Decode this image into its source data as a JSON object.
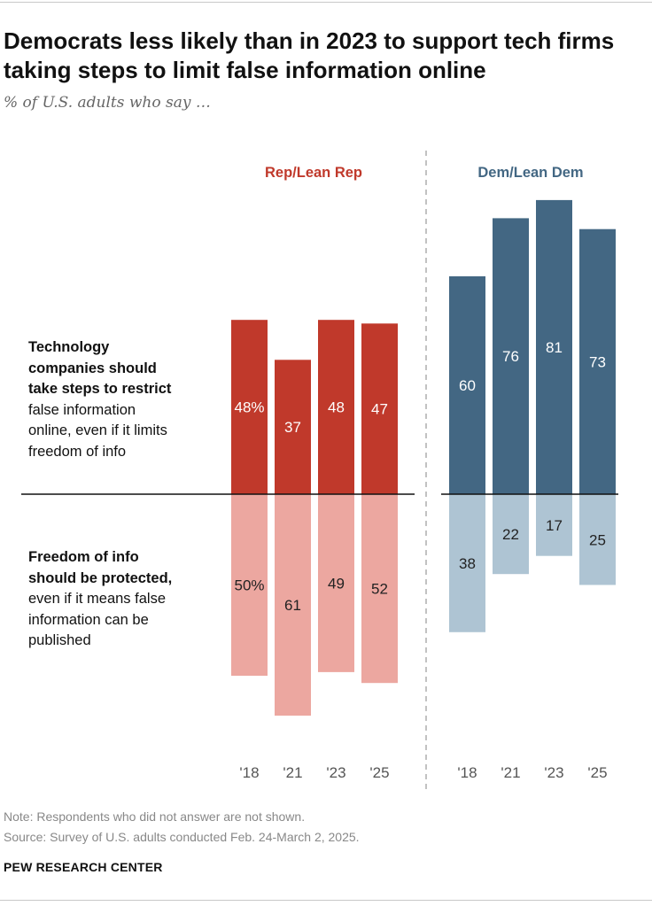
{
  "title": "Democrats less likely than in 2023 to support tech firms taking steps to limit false information online",
  "subtitle": "% of U.S. adults who say …",
  "row_labels": {
    "top_bold_1": "Technology",
    "top_bold_2": "companies should",
    "top_bold_3": "take steps to restrict",
    "top_1": "false information",
    "top_2": "online, even if it limits",
    "top_3": "freedom of info",
    "bottom_bold_1": "Freedom of info",
    "bottom_bold_2": "should be protected,",
    "bottom_1": "even if it means false",
    "bottom_2": "information can be",
    "bottom_3": "published"
  },
  "footer": {
    "note": "Note: Respondents who did not answer are not shown.",
    "source": "Source: Survey of U.S. adults conducted Feb. 24-March 2, 2025.",
    "brand": "PEW RESEARCH CENTER"
  },
  "colors": {
    "rep_restrict": "#c0392b",
    "rep_protect": "#eca7a0",
    "dem_restrict": "#436783",
    "dem_protect": "#aec4d3",
    "rep_label": "#c0392b",
    "dem_label": "#436783"
  },
  "chart_data": {
    "type": "bar",
    "layout": "diverging",
    "categories": [
      "'18",
      "'21",
      "'23",
      "'25"
    ],
    "groups": [
      {
        "name": "Rep/Lean Rep",
        "series": [
          {
            "name": "Technology companies should take steps to restrict false information online, even if it limits freedom of info",
            "values": [
              48,
              37,
              48,
              47
            ],
            "labels": [
              "48%",
              "37",
              "48",
              "47"
            ]
          },
          {
            "name": "Freedom of info should be protected, even if it means false information can be published",
            "values": [
              50,
              61,
              49,
              52
            ],
            "labels": [
              "50%",
              "61",
              "49",
              "52"
            ]
          }
        ]
      },
      {
        "name": "Dem/Lean Dem",
        "series": [
          {
            "name": "Technology companies should take steps to restrict false information online, even if it limits freedom of info",
            "values": [
              60,
              76,
              81,
              73
            ],
            "labels": [
              "60",
              "76",
              "81",
              "73"
            ]
          },
          {
            "name": "Freedom of info should be protected, even if it means false information can be published",
            "values": [
              38,
              22,
              17,
              25
            ],
            "labels": [
              "38",
              "22",
              "17",
              "25"
            ]
          }
        ]
      }
    ],
    "unit": "%"
  }
}
